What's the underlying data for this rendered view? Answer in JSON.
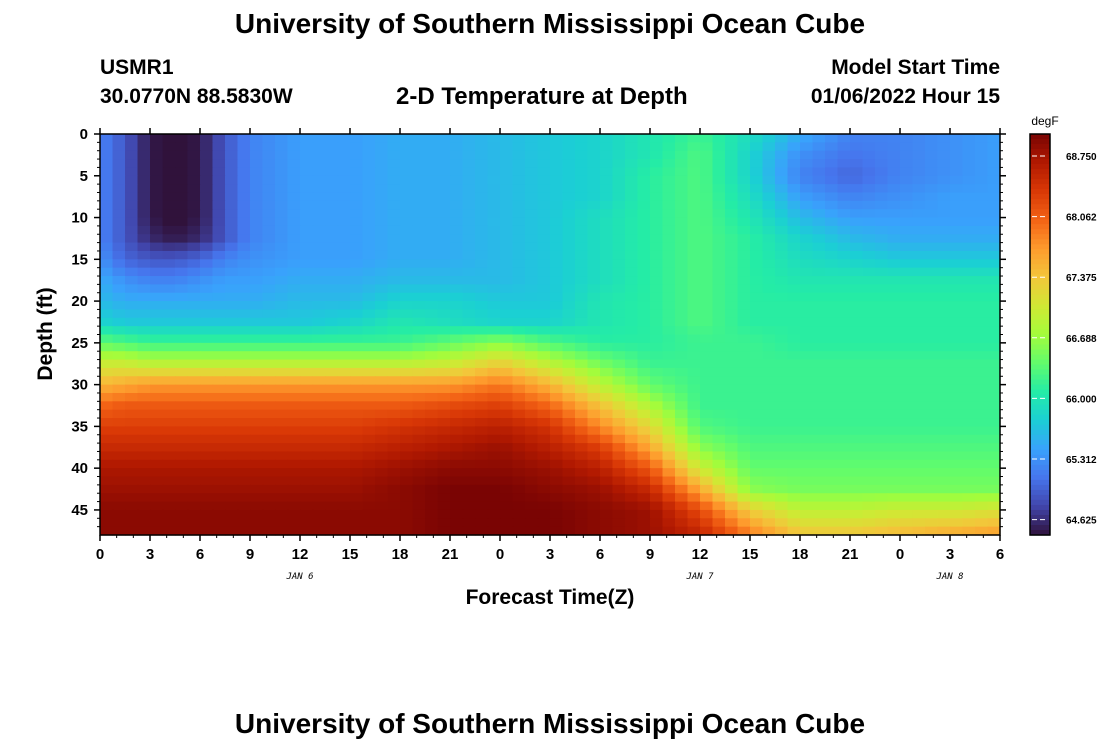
{
  "header": {
    "title": "University of Southern Mississippi Ocean Cube",
    "station_id": "USMR1",
    "station_coords": "30.0770N  88.5830W",
    "plot_title": "2-D Temperature at Depth",
    "model_label": "Model Start Time",
    "model_date": "01/06/2022 Hour 15"
  },
  "footer": {
    "title": "University of Southern Mississippi Ocean Cube"
  },
  "chart_data": {
    "type": "heatmap",
    "title": "2-D Temperature at Depth",
    "xlabel": "Forecast Time(Z)",
    "ylabel": "Depth (ft)",
    "x_tick_labels": [
      "0",
      "3",
      "6",
      "9",
      "12",
      "15",
      "18",
      "21",
      "0",
      "3",
      "6",
      "9",
      "12",
      "15",
      "18",
      "21",
      "0",
      "3",
      "6"
    ],
    "x_day_labels": [
      {
        "label": "JAN 6",
        "hour": 12
      },
      {
        "label": "JAN 7",
        "hour": 36
      },
      {
        "label": "JAN 8",
        "hour": 51
      }
    ],
    "xlim_hours": [
      0,
      54
    ],
    "y_tick_labels": [
      "0",
      "5",
      "10",
      "15",
      "20",
      "25",
      "30",
      "35",
      "40",
      "45"
    ],
    "ylim": [
      0,
      48
    ],
    "y_inverted": true,
    "colorbar": {
      "unit": "degF",
      "tick_labels": [
        "68.750",
        "68.062",
        "67.375",
        "66.688",
        "66.000",
        "65.312",
        "64.625"
      ],
      "range": [
        64.45,
        69.0
      ],
      "colormap": [
        "#30123b",
        "#4145ab",
        "#4675ed",
        "#39a2fc",
        "#1bcfd4",
        "#24eca6",
        "#61fc6c",
        "#a4fc3b",
        "#d1e834",
        "#f3c63a",
        "#fe9b2d",
        "#f36315",
        "#d93806",
        "#b11901",
        "#7a0403"
      ]
    },
    "temperature_field_degF": {
      "depths_ft": [
        0,
        2.5,
        5,
        7.5,
        10,
        12.5,
        15,
        17.5,
        20,
        22.5,
        25,
        27.5,
        30,
        32.5,
        35,
        37.5,
        40,
        42.5,
        45,
        47.5
      ],
      "hours": [
        0,
        1.5,
        3,
        4.5,
        6,
        7.5,
        9,
        12,
        15,
        18,
        21,
        24,
        27,
        30,
        33,
        36,
        39,
        42,
        45,
        48,
        51,
        54
      ],
      "values": [
        [
          65.2,
          64.9,
          64.5,
          64.4,
          64.5,
          64.9,
          65.2,
          65.4,
          65.4,
          65.5,
          65.5,
          65.6,
          65.7,
          65.8,
          66.0,
          66.2,
          65.9,
          65.5,
          65.2,
          65.2,
          65.3,
          65.4
        ],
        [
          65.2,
          64.9,
          64.5,
          64.4,
          64.5,
          64.9,
          65.2,
          65.4,
          65.4,
          65.5,
          65.5,
          65.6,
          65.7,
          65.8,
          66.0,
          66.3,
          65.8,
          65.3,
          65.1,
          65.2,
          65.3,
          65.4
        ],
        [
          65.2,
          64.9,
          64.5,
          64.4,
          64.5,
          64.9,
          65.2,
          65.4,
          65.4,
          65.5,
          65.5,
          65.6,
          65.7,
          65.8,
          66.1,
          66.3,
          65.8,
          65.2,
          65.0,
          65.2,
          65.3,
          65.4
        ],
        [
          65.2,
          64.9,
          64.5,
          64.4,
          64.5,
          64.9,
          65.2,
          65.4,
          65.4,
          65.5,
          65.5,
          65.6,
          65.7,
          65.8,
          66.1,
          66.3,
          65.9,
          65.4,
          65.2,
          65.3,
          65.4,
          65.4
        ],
        [
          65.2,
          64.9,
          64.5,
          64.4,
          64.5,
          64.9,
          65.2,
          65.4,
          65.4,
          65.5,
          65.5,
          65.6,
          65.7,
          65.9,
          66.1,
          66.3,
          66.0,
          65.6,
          65.4,
          65.4,
          65.4,
          65.4
        ],
        [
          65.2,
          64.9,
          64.6,
          64.5,
          64.6,
          64.9,
          65.2,
          65.4,
          65.4,
          65.5,
          65.5,
          65.6,
          65.7,
          65.9,
          66.1,
          66.3,
          66.1,
          65.8,
          65.6,
          65.5,
          65.5,
          65.5
        ],
        [
          65.3,
          65.0,
          64.9,
          64.9,
          65.0,
          65.2,
          65.3,
          65.4,
          65.4,
          65.5,
          65.5,
          65.6,
          65.7,
          65.9,
          66.1,
          66.3,
          66.1,
          65.9,
          65.8,
          65.7,
          65.7,
          65.7
        ],
        [
          65.5,
          65.3,
          65.2,
          65.2,
          65.3,
          65.4,
          65.4,
          65.5,
          65.5,
          65.6,
          65.6,
          65.6,
          65.7,
          65.9,
          66.1,
          66.3,
          66.1,
          66.0,
          66.0,
          66.0,
          66.0,
          66.0
        ],
        [
          65.6,
          65.5,
          65.5,
          65.5,
          65.5,
          65.5,
          65.5,
          65.6,
          65.6,
          65.8,
          65.8,
          65.7,
          65.7,
          66.0,
          66.1,
          66.3,
          66.1,
          66.1,
          66.1,
          66.1,
          66.1,
          66.1
        ],
        [
          65.8,
          65.7,
          65.7,
          65.7,
          65.7,
          65.7,
          65.7,
          65.7,
          65.8,
          66.0,
          65.9,
          65.8,
          65.8,
          66.0,
          66.1,
          66.3,
          66.1,
          66.1,
          66.1,
          66.1,
          66.1,
          66.1
        ],
        [
          66.4,
          66.3,
          66.2,
          66.2,
          66.2,
          66.2,
          66.2,
          66.2,
          66.2,
          66.2,
          66.4,
          66.6,
          66.3,
          66.1,
          66.1,
          66.2,
          66.2,
          66.1,
          66.1,
          66.1,
          66.1,
          66.1
        ],
        [
          67.0,
          67.0,
          66.9,
          66.9,
          66.9,
          66.9,
          66.9,
          66.9,
          66.9,
          66.9,
          67.0,
          67.3,
          66.9,
          66.5,
          66.2,
          66.2,
          66.2,
          66.2,
          66.2,
          66.2,
          66.2,
          66.2
        ],
        [
          67.5,
          67.6,
          67.7,
          67.7,
          67.7,
          67.7,
          67.7,
          67.7,
          67.7,
          67.7,
          67.7,
          67.9,
          67.5,
          66.9,
          66.4,
          66.2,
          66.2,
          66.2,
          66.2,
          66.2,
          66.2,
          66.2
        ],
        [
          68.0,
          68.1,
          68.1,
          68.1,
          68.1,
          68.1,
          68.1,
          68.1,
          68.1,
          68.1,
          68.2,
          68.3,
          68.0,
          67.4,
          66.8,
          66.2,
          66.2,
          66.2,
          66.2,
          66.2,
          66.2,
          66.2
        ],
        [
          68.3,
          68.3,
          68.3,
          68.3,
          68.3,
          68.3,
          68.3,
          68.3,
          68.3,
          68.4,
          68.5,
          68.6,
          68.4,
          67.8,
          67.2,
          66.3,
          66.2,
          66.2,
          66.2,
          66.2,
          66.2,
          66.2
        ],
        [
          68.5,
          68.5,
          68.5,
          68.5,
          68.5,
          68.5,
          68.5,
          68.5,
          68.5,
          68.6,
          68.7,
          68.8,
          68.6,
          68.3,
          67.6,
          66.6,
          66.3,
          66.3,
          66.3,
          66.3,
          66.3,
          66.3
        ],
        [
          68.7,
          68.7,
          68.7,
          68.7,
          68.7,
          68.7,
          68.7,
          68.7,
          68.7,
          68.8,
          68.9,
          68.9,
          68.8,
          68.6,
          68.1,
          67.0,
          66.4,
          66.4,
          66.4,
          66.4,
          66.4,
          66.4
        ],
        [
          68.8,
          68.8,
          68.8,
          68.8,
          68.8,
          68.8,
          68.8,
          68.8,
          68.8,
          68.9,
          69.0,
          69.0,
          68.9,
          68.8,
          68.5,
          67.6,
          66.6,
          66.5,
          66.5,
          66.5,
          66.5,
          66.5
        ],
        [
          68.9,
          68.9,
          68.9,
          68.9,
          68.9,
          68.9,
          68.9,
          68.9,
          68.9,
          68.9,
          69.0,
          69.0,
          69.0,
          68.9,
          68.8,
          68.2,
          67.3,
          66.9,
          66.9,
          67.0,
          67.0,
          67.1
        ],
        [
          68.9,
          68.9,
          68.9,
          68.9,
          68.9,
          68.9,
          68.9,
          68.9,
          68.9,
          68.9,
          69.0,
          69.0,
          69.0,
          68.9,
          68.8,
          68.5,
          67.8,
          67.3,
          67.3,
          67.4,
          67.5,
          67.6
        ]
      ]
    },
    "grid": false
  }
}
